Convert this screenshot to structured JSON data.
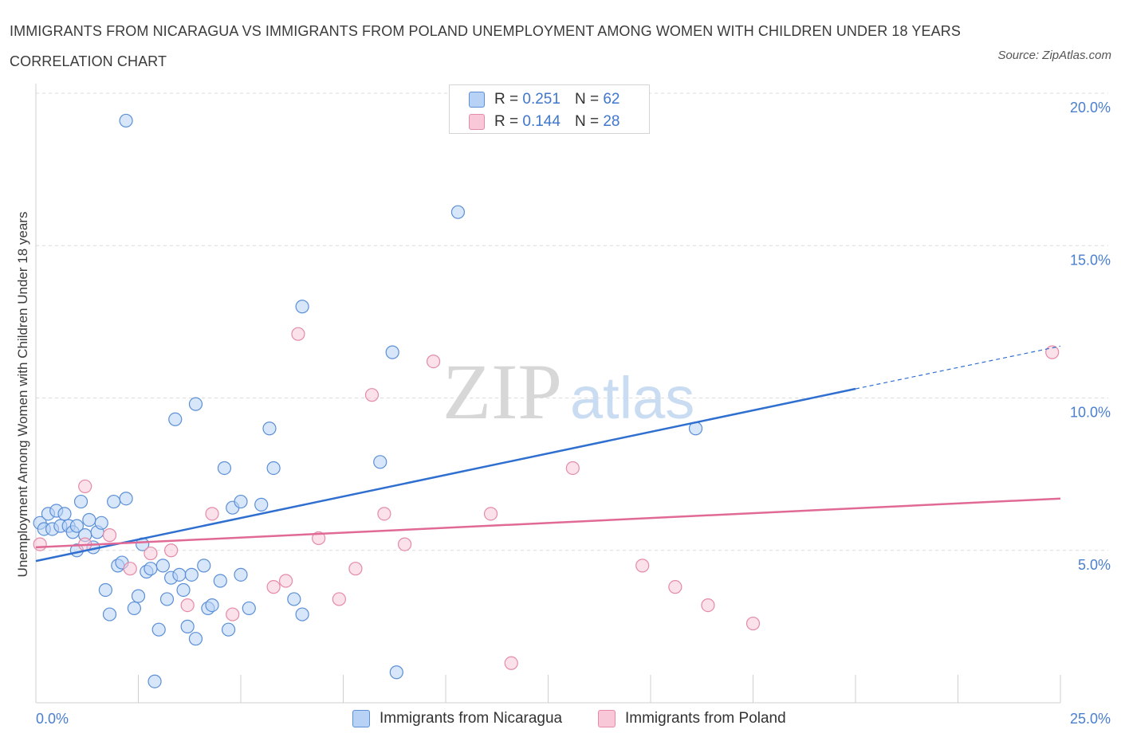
{
  "title": "IMMIGRANTS FROM NICARAGUA VS IMMIGRANTS FROM POLAND UNEMPLOYMENT AMONG WOMEN WITH CHILDREN UNDER 18 YEARS CORRELATION CHART",
  "source": "Source: ZipAtlas.com",
  "watermark": {
    "zip": "ZIP",
    "atlas": "atlas"
  },
  "legend": {
    "r_label": "R =",
    "n_label": "N =",
    "series1": {
      "r": "0.251",
      "n": "62"
    },
    "series2": {
      "r": "0.144",
      "n": "28"
    }
  },
  "colors": {
    "series1_fill": "#b8d2f5",
    "series1_stroke": "#5b8fd6",
    "series1_line": "#2f6fd0",
    "series2_fill": "#f8c8d8",
    "series2_stroke": "#e58aa8",
    "series2_line": "#e06a95"
  },
  "chart_data": {
    "type": "scatter",
    "xlabel": "",
    "ylabel": "Unemployment Among Women with Children Under 18 years",
    "xlim": [
      0,
      25
    ],
    "ylim": [
      0,
      20
    ],
    "x_tick_labels": [
      "0.0%",
      "25.0%"
    ],
    "y_ticks": [
      5,
      10,
      15,
      20
    ],
    "y_tick_labels": [
      "5.0%",
      "10.0%",
      "15.0%",
      "20.0%"
    ],
    "grid": true,
    "legend_position": "bottom",
    "series": [
      {
        "name": "Immigrants from Nicaragua",
        "points": [
          [
            0.1,
            5.9
          ],
          [
            0.2,
            5.7
          ],
          [
            0.3,
            6.2
          ],
          [
            0.4,
            5.7
          ],
          [
            0.5,
            6.3
          ],
          [
            0.6,
            5.8
          ],
          [
            0.7,
            6.2
          ],
          [
            0.8,
            5.8
          ],
          [
            0.9,
            5.6
          ],
          [
            1.0,
            5.8
          ],
          [
            1.0,
            5.0
          ],
          [
            1.1,
            6.6
          ],
          [
            1.2,
            5.5
          ],
          [
            1.3,
            6.0
          ],
          [
            1.4,
            5.1
          ],
          [
            1.5,
            5.6
          ],
          [
            1.6,
            5.9
          ],
          [
            1.7,
            3.7
          ],
          [
            1.8,
            2.9
          ],
          [
            1.9,
            6.6
          ],
          [
            2.0,
            4.5
          ],
          [
            2.1,
            4.6
          ],
          [
            2.2,
            19.1
          ],
          [
            2.2,
            6.7
          ],
          [
            2.4,
            3.1
          ],
          [
            2.5,
            3.5
          ],
          [
            2.6,
            5.2
          ],
          [
            2.7,
            4.3
          ],
          [
            2.8,
            4.4
          ],
          [
            2.9,
            0.7
          ],
          [
            3.0,
            2.4
          ],
          [
            3.1,
            4.5
          ],
          [
            3.2,
            3.4
          ],
          [
            3.3,
            4.1
          ],
          [
            3.4,
            9.3
          ],
          [
            3.5,
            4.2
          ],
          [
            3.6,
            3.7
          ],
          [
            3.7,
            2.5
          ],
          [
            3.8,
            4.2
          ],
          [
            3.9,
            9.8
          ],
          [
            3.9,
            2.1
          ],
          [
            4.1,
            4.5
          ],
          [
            4.2,
            3.1
          ],
          [
            4.3,
            3.2
          ],
          [
            4.5,
            4.0
          ],
          [
            4.6,
            7.7
          ],
          [
            4.7,
            2.4
          ],
          [
            4.8,
            6.4
          ],
          [
            5.0,
            6.6
          ],
          [
            5.0,
            4.2
          ],
          [
            5.2,
            3.1
          ],
          [
            5.5,
            6.5
          ],
          [
            5.7,
            9.0
          ],
          [
            5.8,
            7.7
          ],
          [
            6.3,
            3.4
          ],
          [
            6.5,
            2.9
          ],
          [
            6.5,
            13.0
          ],
          [
            8.4,
            7.9
          ],
          [
            8.7,
            11.5
          ],
          [
            8.8,
            1.0
          ],
          [
            10.3,
            16.1
          ],
          [
            16.1,
            9.0
          ]
        ],
        "trend": {
          "x": [
            0,
            20.0
          ],
          "y": [
            4.65,
            10.3
          ],
          "dashed_extension": {
            "x": [
              20.0,
              25.0
            ],
            "y": [
              10.3,
              11.7
            ]
          }
        }
      },
      {
        "name": "Immigrants from Poland",
        "points": [
          [
            0.1,
            5.2
          ],
          [
            1.2,
            5.2
          ],
          [
            1.2,
            7.1
          ],
          [
            1.8,
            5.5
          ],
          [
            2.3,
            4.4
          ],
          [
            2.8,
            4.9
          ],
          [
            3.3,
            5.0
          ],
          [
            3.7,
            3.2
          ],
          [
            4.3,
            6.2
          ],
          [
            4.8,
            2.9
          ],
          [
            5.8,
            3.8
          ],
          [
            6.1,
            4.0
          ],
          [
            6.4,
            12.1
          ],
          [
            6.9,
            5.4
          ],
          [
            7.4,
            3.4
          ],
          [
            7.8,
            4.4
          ],
          [
            8.2,
            10.1
          ],
          [
            8.5,
            6.2
          ],
          [
            9.0,
            5.2
          ],
          [
            9.7,
            11.2
          ],
          [
            11.1,
            6.2
          ],
          [
            11.6,
            1.3
          ],
          [
            13.1,
            7.7
          ],
          [
            14.8,
            4.5
          ],
          [
            15.6,
            3.8
          ],
          [
            16.4,
            3.2
          ],
          [
            17.5,
            2.6
          ],
          [
            24.8,
            11.5
          ]
        ],
        "trend": {
          "x": [
            0,
            25.0
          ],
          "y": [
            5.1,
            6.7
          ]
        }
      }
    ]
  },
  "bottom_legend": {
    "series1": "Immigrants from Nicaragua",
    "series2": "Immigrants from Poland"
  }
}
